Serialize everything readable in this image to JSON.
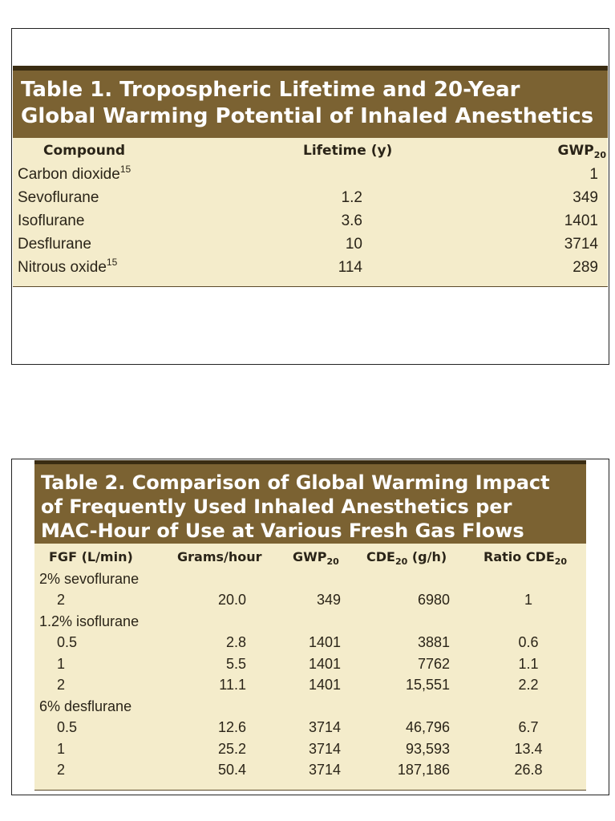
{
  "table1": {
    "title_line1": "Table 1.  Tropospheric Lifetime and 20-Year",
    "title_line2": "Global Warming Potential of Inhaled Anesthetics",
    "headers": {
      "compound": "Compound",
      "lifetime": "Lifetime (y)",
      "gwp": "GWP",
      "gwp_sub": "20"
    },
    "rows": [
      {
        "compound": "Carbon dioxide",
        "sup": "15",
        "lifetime": "",
        "gwp": "1"
      },
      {
        "compound": "Sevoflurane",
        "sup": "",
        "lifetime": "1.2",
        "gwp": "349"
      },
      {
        "compound": "Isoflurane",
        "sup": "",
        "lifetime": "3.6",
        "gwp": "1401"
      },
      {
        "compound": "Desflurane",
        "sup": "",
        "lifetime": "10",
        "gwp": "3714"
      },
      {
        "compound": "Nitrous oxide",
        "sup": "15",
        "lifetime": "114",
        "gwp": "289"
      }
    ]
  },
  "table2": {
    "title_line1": "Table 2.  Comparison of Global Warming Impact",
    "title_line2": "of Frequently Used Inhaled Anesthetics per",
    "title_line3": "MAC-Hour of Use at Various Fresh Gas Flows",
    "headers": {
      "fgf": "FGF (L/min)",
      "grams": "Grams/hour",
      "gwp": "GWP",
      "gwp_sub": "20",
      "cde": "CDE",
      "cde_sub": "20",
      "cde_unit": " (g/h)",
      "ratio": "Ratio CDE",
      "ratio_sub": "20"
    },
    "rows": [
      {
        "fgf": "2% sevoflurane",
        "group": true
      },
      {
        "fgf": "2",
        "grams": "20.0",
        "gwp": "349",
        "cde": "6980",
        "ratio": "1"
      },
      {
        "fgf": "1.2% isoflurane",
        "group": true
      },
      {
        "fgf": "0.5",
        "grams": "2.8",
        "gwp": "1401",
        "cde": "3881",
        "ratio": "0.6"
      },
      {
        "fgf": "1",
        "grams": "5.5",
        "gwp": "1401",
        "cde": "7762",
        "ratio": "1.1"
      },
      {
        "fgf": "2",
        "grams": "11.1",
        "gwp": "1401",
        "cde": "15,551",
        "ratio": "2.2"
      },
      {
        "fgf": "6% desflurane",
        "group": true
      },
      {
        "fgf": "0.5",
        "grams": "12.6",
        "gwp": "3714",
        "cde": "46,796",
        "ratio": "6.7"
      },
      {
        "fgf": "1",
        "grams": "25.2",
        "gwp": "3714",
        "cde": "93,593",
        "ratio": "13.4"
      },
      {
        "fgf": "2",
        "grams": "50.4",
        "gwp": "3714",
        "cde": "187,186",
        "ratio": "26.8"
      }
    ]
  },
  "colors": {
    "title_bg": "#7b6232",
    "body_bg": "#f4eccb",
    "border": "#222222"
  }
}
